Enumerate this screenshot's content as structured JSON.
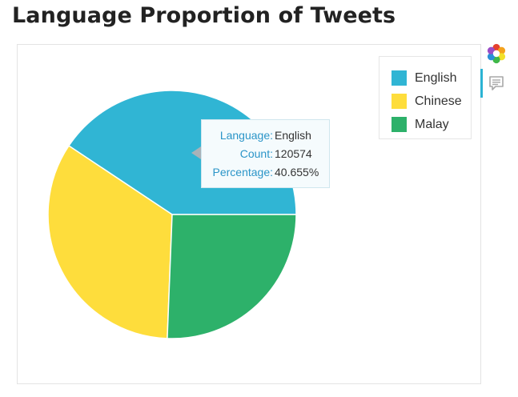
{
  "title": "Language Proportion of Tweets",
  "chart_data": {
    "type": "pie",
    "title": "Language Proportion of Tweets",
    "categories": [
      "English",
      "Chinese",
      "Malay"
    ],
    "values": [
      120574,
      100000,
      76000
    ],
    "colors": [
      "#30b5d4",
      "#fedd3c",
      "#2db16a"
    ],
    "legend_position": "top-right",
    "legend": [
      {
        "label": "English",
        "color": "#30b5d4"
      },
      {
        "label": "Chinese",
        "color": "#fedd3c"
      },
      {
        "label": "Malay",
        "color": "#2db16a"
      }
    ]
  },
  "tooltip": {
    "rows": [
      {
        "key": "Language:",
        "value": "English"
      },
      {
        "key": "Count:",
        "value": "120574"
      },
      {
        "key": "Percentage:",
        "value": "40.655%"
      }
    ]
  },
  "toolbar": {
    "logo_icon": "bokeh-logo-icon",
    "tool_icon": "hover-tool-icon"
  }
}
